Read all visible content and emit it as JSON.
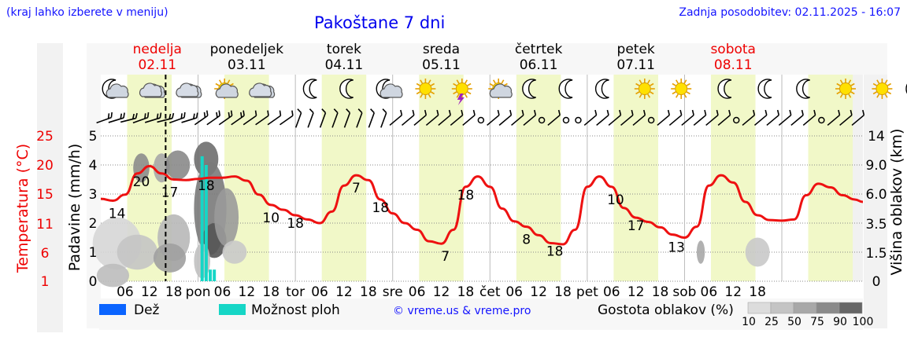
{
  "header": {
    "region_hint": "(kraj lahko izberete v meniju)",
    "title": "Pakoštane 7 dni",
    "last_update": "Zadnja posodobitev: 02.11.2025 - 16:07"
  },
  "days": [
    {
      "name": "nedelja",
      "date": "02.11",
      "color": "#ee0000"
    },
    {
      "name": "ponedeljek",
      "date": "03.11",
      "color": "#000000"
    },
    {
      "name": "torek",
      "date": "04.11",
      "color": "#000000"
    },
    {
      "name": "sreda",
      "date": "05.11",
      "color": "#000000"
    },
    {
      "name": "četrtek",
      "date": "06.11",
      "color": "#000000"
    },
    {
      "name": "petek",
      "date": "07.11",
      "color": "#000000"
    },
    {
      "name": "sobota",
      "date": "08.11",
      "color": "#ee0000"
    }
  ],
  "axes": {
    "left_temp_label": "Temperatura (°C)",
    "left_precip_label": "Padavine (mm/h)",
    "right_label": "Višina oblakov (km)"
  },
  "legend": {
    "rain_label": "Dež",
    "shower_label": "Možnost ploh",
    "credit": "© vreme.us & vreme.pro",
    "cloud_label": "Gostota oblakov (%)",
    "cloud_ticks": [
      "10",
      "25",
      "50",
      "75",
      "90",
      "100"
    ],
    "rain_color": "#0a64ff",
    "shower_color": "#16d6c6"
  },
  "chart_data": {
    "type": "line",
    "title": "Pakoštane 7 dni",
    "x_unit": "hours since 02.11 00:00",
    "x_ticks": [
      "06",
      "12",
      "18",
      "pon",
      "06",
      "12",
      "18",
      "tor",
      "06",
      "12",
      "18",
      "sre",
      "06",
      "12",
      "18",
      "čet",
      "06",
      "12",
      "18",
      "pet",
      "06",
      "12",
      "18",
      "sob",
      "06",
      "12",
      "18"
    ],
    "temp_axis": {
      "label": "Temperatura (°C)",
      "ticks": [
        1,
        6,
        11,
        15,
        20,
        25
      ],
      "ylim": [
        1,
        25
      ]
    },
    "precip_axis": {
      "label": "Padavine (mm/h)",
      "ticks": [
        0,
        1,
        2,
        3,
        4,
        5
      ],
      "ylim": [
        0,
        5
      ]
    },
    "cloud_height_axis": {
      "label": "Višina oblakov (km)",
      "ticks": [
        "0",
        "1.5",
        "3.5",
        "6.0",
        "9.0",
        "14"
      ]
    },
    "now_marker_hour": 16,
    "series": [
      {
        "name": "Temperatura",
        "color": "#ee1111",
        "points": [
          [
            0,
            14.6
          ],
          [
            3,
            14.3
          ],
          [
            6,
            15.3
          ],
          [
            9,
            18.8
          ],
          [
            12,
            20.0
          ],
          [
            15,
            18.8
          ],
          [
            18,
            17.8
          ],
          [
            21,
            17.7
          ],
          [
            24,
            17.9
          ],
          [
            27,
            18.1
          ],
          [
            30,
            18.1
          ],
          [
            33,
            18.3
          ],
          [
            36,
            17.6
          ],
          [
            39,
            15.3
          ],
          [
            42,
            13.6
          ],
          [
            45,
            12.8
          ],
          [
            48,
            11.9
          ],
          [
            51,
            11.2
          ],
          [
            54,
            10.6
          ],
          [
            57,
            12.5
          ],
          [
            60,
            16.8
          ],
          [
            63,
            18.5
          ],
          [
            66,
            17.7
          ],
          [
            69,
            14.5
          ],
          [
            72,
            12.2
          ],
          [
            75,
            10.6
          ],
          [
            78,
            9.5
          ],
          [
            81,
            7.6
          ],
          [
            84,
            7.2
          ],
          [
            87,
            9.5
          ],
          [
            90,
            16.6
          ],
          [
            93,
            18.3
          ],
          [
            96,
            16.6
          ],
          [
            99,
            13.0
          ],
          [
            102,
            10.9
          ],
          [
            105,
            10.0
          ],
          [
            108,
            8.6
          ],
          [
            111,
            7.3
          ],
          [
            114,
            7.1
          ],
          [
            117,
            9.5
          ],
          [
            120,
            16.6
          ],
          [
            123,
            18.3
          ],
          [
            126,
            16.6
          ],
          [
            129,
            13.1
          ],
          [
            132,
            11.5
          ],
          [
            135,
            10.8
          ],
          [
            138,
            9.9
          ],
          [
            141,
            8.7
          ],
          [
            144,
            8.2
          ],
          [
            147,
            10.0
          ],
          [
            150,
            16.8
          ],
          [
            153,
            18.5
          ],
          [
            156,
            17.3
          ],
          [
            159,
            14.1
          ],
          [
            162,
            11.9
          ],
          [
            165,
            11.1
          ],
          [
            168,
            11.0
          ],
          [
            171,
            11.2
          ],
          [
            174,
            15.2
          ],
          [
            177,
            17.1
          ],
          [
            180,
            16.5
          ],
          [
            183,
            15.2
          ],
          [
            186,
            14.5
          ],
          [
            188,
            14.1
          ]
        ],
        "labels": [
          [
            4,
            14
          ],
          [
            10,
            20
          ],
          [
            17,
            17
          ],
          [
            26,
            18
          ],
          [
            42,
            10
          ],
          [
            48,
            18
          ],
          [
            63,
            7
          ],
          [
            69,
            18
          ],
          [
            85,
            7
          ],
          [
            90,
            18
          ],
          [
            105,
            8
          ],
          [
            112,
            18
          ],
          [
            127,
            10
          ],
          [
            132,
            17
          ],
          [
            142,
            13
          ]
        ]
      },
      {
        "name": "Možnost ploh",
        "color": "#16d6c6",
        "bars_mm_per_h": [
          [
            25,
            4.3
          ],
          [
            26,
            4.0
          ],
          [
            27,
            0.4
          ],
          [
            28,
            0.4
          ]
        ]
      }
    ],
    "cloud_density_legend_percent": [
      10,
      25,
      50,
      75,
      90,
      100
    ]
  }
}
